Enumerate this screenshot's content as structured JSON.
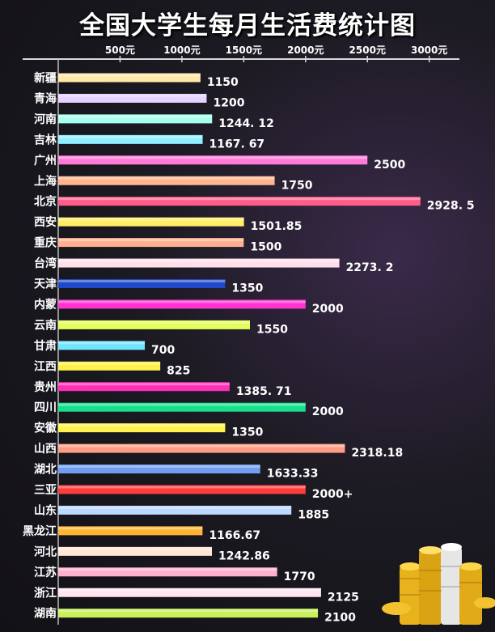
{
  "chart_data": {
    "type": "bar",
    "orientation": "horizontal",
    "title": "全国大学生每月生活费统计图",
    "xlabel": "",
    "ylabel": "",
    "xlim": [
      0,
      3200
    ],
    "grid": false,
    "ticks": [
      {
        "value": 500,
        "label": "500元"
      },
      {
        "value": 1000,
        "label": "1000元"
      },
      {
        "value": 1500,
        "label": "1500元"
      },
      {
        "value": 2000,
        "label": "2000元"
      },
      {
        "value": 2500,
        "label": "2500元"
      },
      {
        "value": 3000,
        "label": "3000元"
      }
    ],
    "bars": [
      {
        "category": "新疆",
        "value": 1150,
        "label": "1150",
        "color": "#ffe9a8"
      },
      {
        "category": "青海",
        "value": 1200,
        "label": "1200",
        "color": "#e4d2ff"
      },
      {
        "category": "河南",
        "value": 1244.12,
        "label": "1244. 12",
        "color": "#a8ffee"
      },
      {
        "category": "吉林",
        "value": 1167.67,
        "label": "1167. 67",
        "color": "#8ff0ff"
      },
      {
        "category": "广州",
        "value": 2500,
        "label": "2500",
        "color": "#ff7ad8"
      },
      {
        "category": "上海",
        "value": 1750,
        "label": "1750",
        "color": "#ffb68f"
      },
      {
        "category": "北京",
        "value": 2928.5,
        "label": "2928. 5",
        "color": "#ff5c8a"
      },
      {
        "category": "西安",
        "value": 1501.85,
        "label": "1501.85",
        "color": "#ffee66"
      },
      {
        "category": "重庆",
        "value": 1500,
        "label": "1500",
        "color": "#ffb090"
      },
      {
        "category": "台湾",
        "value": 2273.2,
        "label": "2273. 2",
        "color": "#ffe0ea"
      },
      {
        "category": "天津",
        "value": 1350,
        "label": "1350",
        "color": "#1f49c9"
      },
      {
        "category": "内蒙",
        "value": 2000,
        "label": "2000",
        "color": "#ff33d2"
      },
      {
        "category": "云南",
        "value": 1550,
        "label": "1550",
        "color": "#e3ff5a"
      },
      {
        "category": "甘肃",
        "value": 700,
        "label": "700",
        "color": "#6fe5ff"
      },
      {
        "category": "江西",
        "value": 825,
        "label": "825",
        "color": "#fff04a"
      },
      {
        "category": "贵州",
        "value": 1385.71,
        "label": "1385. 71",
        "color": "#ff2fb7"
      },
      {
        "category": "四川",
        "value": 2000,
        "label": "2000",
        "color": "#17e08c"
      },
      {
        "category": "安徽",
        "value": 1350,
        "label": "1350",
        "color": "#fff24e"
      },
      {
        "category": "山西",
        "value": 2318.18,
        "label": "2318.18",
        "color": "#ff9d84"
      },
      {
        "category": "湖北",
        "value": 1633.33,
        "label": "1633.33",
        "color": "#6f9df0"
      },
      {
        "category": "三亚",
        "value": 2000,
        "label": "2000+",
        "color": "#ff3b3b"
      },
      {
        "category": "山东",
        "value": 1885,
        "label": "1885",
        "color": "#bcd8ff"
      },
      {
        "category": "黑龙江",
        "value": 1166.67,
        "label": "1166.67",
        "color": "#ffb533"
      },
      {
        "category": "河北",
        "value": 1242.86,
        "label": "1242.86",
        "color": "#ffe6d4"
      },
      {
        "category": "江苏",
        "value": 1770,
        "label": "1770",
        "color": "#ffb0cc"
      },
      {
        "category": "浙江",
        "value": 2125,
        "label": "2125",
        "color": "#ffe6ee"
      },
      {
        "category": "湖南",
        "value": 2100,
        "label": "2100",
        "color": "#c8f05a"
      }
    ]
  }
}
